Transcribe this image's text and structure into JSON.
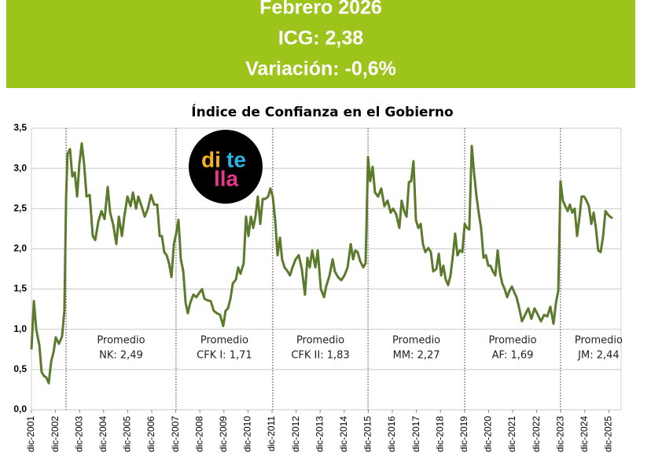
{
  "header": {
    "lines": [
      "Febrero 2026",
      "ICG: 2,38",
      "Variación: -0,6%"
    ]
  },
  "logo": [
    "di",
    "te",
    "lla"
  ],
  "chart_data": {
    "type": "line",
    "title": "Índice de Confianza en el Gobierno",
    "x": [
      2001.92,
      2002.02,
      2002.12,
      2002.25,
      2002.34,
      2002.44,
      2002.54,
      2002.64,
      2002.74,
      2002.84,
      2002.93,
      2003.06,
      2003.19,
      2003.29,
      2003.36,
      2003.42,
      2003.52,
      2003.62,
      2003.72,
      2003.82,
      2003.91,
      2004.01,
      2004.11,
      2004.21,
      2004.34,
      2004.47,
      2004.57,
      2004.7,
      2004.83,
      2004.96,
      2005.09,
      2005.19,
      2005.32,
      2005.45,
      2005.55,
      2005.68,
      2005.78,
      2005.91,
      2006.04,
      2006.14,
      2006.27,
      2006.36,
      2006.5,
      2006.63,
      2006.76,
      2006.89,
      2007.02,
      2007.15,
      2007.25,
      2007.34,
      2007.44,
      2007.54,
      2007.64,
      2007.74,
      2007.84,
      2007.93,
      2008.03,
      2008.13,
      2008.23,
      2008.33,
      2008.42,
      2008.52,
      2008.65,
      2008.78,
      2008.91,
      2009.01,
      2009.11,
      2009.24,
      2009.37,
      2009.5,
      2009.63,
      2009.76,
      2009.89,
      2009.99,
      2010.09,
      2010.19,
      2010.29,
      2010.42,
      2010.51,
      2010.61,
      2010.74,
      2010.84,
      2010.94,
      2011.04,
      2011.14,
      2011.23,
      2011.33,
      2011.43,
      2011.53,
      2011.63,
      2011.76,
      2011.85,
      2011.95,
      2012.05,
      2012.15,
      2012.25,
      2012.34,
      2012.44,
      2012.57,
      2012.67,
      2012.77,
      2012.9,
      2013.03,
      2013.16,
      2013.29,
      2013.39,
      2013.49,
      2013.59,
      2013.72,
      2013.82,
      2013.95,
      2014.08,
      2014.17,
      2014.31,
      2014.44,
      2014.53,
      2014.66,
      2014.8,
      2014.93,
      2015.06,
      2015.19,
      2015.29,
      2015.38,
      2015.48,
      2015.58,
      2015.71,
      2015.81,
      2015.91,
      2016.0,
      2016.1,
      2016.2,
      2016.33,
      2016.46,
      2016.59,
      2016.72,
      2016.85,
      2016.95,
      2017.08,
      2017.21,
      2017.31,
      2017.41,
      2017.51,
      2017.61,
      2017.7,
      2017.8,
      2017.9,
      2018.0,
      2018.1,
      2018.19,
      2018.29,
      2018.42,
      2018.52,
      2018.62,
      2018.75,
      2018.85,
      2018.95,
      2019.04,
      2019.14,
      2019.24,
      2019.34,
      2019.44,
      2019.53,
      2019.63,
      2019.73,
      2019.83,
      2019.93,
      2020.02,
      2020.12,
      2020.22,
      2020.32,
      2020.42,
      2020.51,
      2020.61,
      2020.71,
      2020.81,
      2020.91,
      2021.0,
      2021.1,
      2021.2,
      2021.3,
      2021.4,
      2021.49,
      2021.59,
      2021.69,
      2021.79,
      2021.89,
      2021.99,
      2022.08,
      2022.18,
      2022.31,
      2022.44,
      2022.57,
      2022.7,
      2022.83,
      2022.97,
      2023.1,
      2023.23,
      2023.36,
      2023.49,
      2023.62,
      2023.72,
      2023.82,
      2023.91,
      2024.01,
      2024.11,
      2024.21,
      2024.3,
      2024.4,
      2024.5,
      2024.6,
      2024.7,
      2024.79,
      2024.89,
      2024.99,
      2025.09,
      2025.19,
      2025.29,
      2025.38,
      2025.48,
      2025.58,
      2025.68,
      2025.78,
      2025.87,
      2025.97,
      2026.07
    ],
    "series": [
      {
        "color": "#5b7a2c",
        "values": [
          0.75,
          1.35,
          1.0,
          0.8,
          0.47,
          0.42,
          0.4,
          0.33,
          0.6,
          0.72,
          0.9,
          0.82,
          0.91,
          1.23,
          2.65,
          3.18,
          3.24,
          2.9,
          2.95,
          2.65,
          3.05,
          3.31,
          3.05,
          2.65,
          2.67,
          2.16,
          2.11,
          2.34,
          2.47,
          2.37,
          2.77,
          2.45,
          2.3,
          2.06,
          2.4,
          2.16,
          2.4,
          2.65,
          2.53,
          2.7,
          2.5,
          2.65,
          2.53,
          2.4,
          2.5,
          2.67,
          2.55,
          2.55,
          2.16,
          2.16,
          1.96,
          1.92,
          1.82,
          1.65,
          2.06,
          2.18,
          2.36,
          1.87,
          1.72,
          1.33,
          1.2,
          1.33,
          1.43,
          1.4,
          1.46,
          1.5,
          1.38,
          1.36,
          1.35,
          1.23,
          1.2,
          1.18,
          1.04,
          1.23,
          1.26,
          1.38,
          1.57,
          1.62,
          1.77,
          1.69,
          1.82,
          2.4,
          2.16,
          2.4,
          2.26,
          2.4,
          2.65,
          2.31,
          2.62,
          2.62,
          2.65,
          2.75,
          2.65,
          2.36,
          1.92,
          2.14,
          1.87,
          1.77,
          1.72,
          1.67,
          1.77,
          1.87,
          1.92,
          1.75,
          1.43,
          1.89,
          1.77,
          1.98,
          1.77,
          1.98,
          1.5,
          1.4,
          1.53,
          1.67,
          1.87,
          1.72,
          1.65,
          1.61,
          1.67,
          1.77,
          2.06,
          1.87,
          1.98,
          1.96,
          1.85,
          1.77,
          1.82,
          3.14,
          2.84,
          3.02,
          2.7,
          2.65,
          2.75,
          2.53,
          2.6,
          2.45,
          2.5,
          2.43,
          2.26,
          2.6,
          2.47,
          2.4,
          2.83,
          2.84,
          3.09,
          2.36,
          2.26,
          2.31,
          2.06,
          1.96,
          2.01,
          1.96,
          1.72,
          1.75,
          1.94,
          1.67,
          1.79,
          1.62,
          1.55,
          1.67,
          1.92,
          2.19,
          1.92,
          1.98,
          1.96,
          2.31,
          2.26,
          2.24,
          3.28,
          2.94,
          2.65,
          2.45,
          2.26,
          1.89,
          1.92,
          1.79,
          1.79,
          1.72,
          1.67,
          1.98,
          1.69,
          1.57,
          1.5,
          1.4,
          1.48,
          1.53,
          1.46,
          1.4,
          1.28,
          1.1,
          1.18,
          1.26,
          1.13,
          1.26,
          1.18,
          1.1,
          1.18,
          1.16,
          1.28,
          1.07,
          1.33,
          1.48,
          2.84,
          2.6,
          2.53,
          2.47,
          2.55,
          2.45,
          2.5,
          2.16,
          2.4,
          2.65,
          2.65,
          2.6,
          2.53,
          2.31,
          2.45,
          2.26,
          1.98,
          1.96,
          2.16,
          2.47,
          2.43,
          2.4,
          2.38
        ]
      }
    ],
    "xlim": [
      2001.92,
      2026.43
    ],
    "xticks": [
      {
        "value": 2001.92,
        "label": "dic-2001"
      },
      {
        "value": 2002.92,
        "label": "dic-2002"
      },
      {
        "value": 2003.92,
        "label": "dic-2003"
      },
      {
        "value": 2004.92,
        "label": "dic-2004"
      },
      {
        "value": 2005.92,
        "label": "dic-2005"
      },
      {
        "value": 2006.92,
        "label": "dic-2006"
      },
      {
        "value": 2007.92,
        "label": "dic-2007"
      },
      {
        "value": 2008.92,
        "label": "dic-2008"
      },
      {
        "value": 2009.92,
        "label": "dic-2009"
      },
      {
        "value": 2010.92,
        "label": "dic-2010"
      },
      {
        "value": 2011.92,
        "label": "dic-2011"
      },
      {
        "value": 2012.92,
        "label": "dic-2012"
      },
      {
        "value": 2013.92,
        "label": "dic-2013"
      },
      {
        "value": 2014.92,
        "label": "dic-2014"
      },
      {
        "value": 2015.92,
        "label": "dic-2015"
      },
      {
        "value": 2016.92,
        "label": "dic-2016"
      },
      {
        "value": 2017.92,
        "label": "dic-2017"
      },
      {
        "value": 2018.92,
        "label": "dic-2018"
      },
      {
        "value": 2019.92,
        "label": "dic-2019"
      },
      {
        "value": 2020.92,
        "label": "dic-2020"
      },
      {
        "value": 2021.92,
        "label": "dic-2021"
      },
      {
        "value": 2022.92,
        "label": "dic-2022"
      },
      {
        "value": 2023.92,
        "label": "dic-2023"
      },
      {
        "value": 2024.92,
        "label": "dic-2024"
      },
      {
        "value": 2025.92,
        "label": "dic-2025"
      }
    ],
    "ylim": [
      0,
      3.5
    ],
    "yticks": [
      {
        "value": 0,
        "label": "0,0"
      },
      {
        "value": 0.5,
        "label": "0,5"
      },
      {
        "value": 1,
        "label": "1,0"
      },
      {
        "value": 1.5,
        "label": "1,5"
      },
      {
        "value": 2,
        "label": "2,0"
      },
      {
        "value": 2.5,
        "label": "2,5"
      },
      {
        "value": 3,
        "label": "3,0"
      },
      {
        "value": 3.5,
        "label": "3,5"
      }
    ],
    "grid": true,
    "period_lines": [
      2003.36,
      2007.93,
      2011.95,
      2015.91,
      2019.93,
      2023.91
    ],
    "annotations": [
      [
        "Promedio",
        "NK: 2,49"
      ],
      [
        "Promedio",
        "CFK I: 1,71"
      ],
      [
        "Promedio",
        "CFK II: 1,83"
      ],
      [
        "Promedio",
        "MM: 2,27"
      ],
      [
        "Promedio",
        "AF: 1,69"
      ],
      [
        "Promedio",
        "JM: 2,44"
      ]
    ]
  }
}
